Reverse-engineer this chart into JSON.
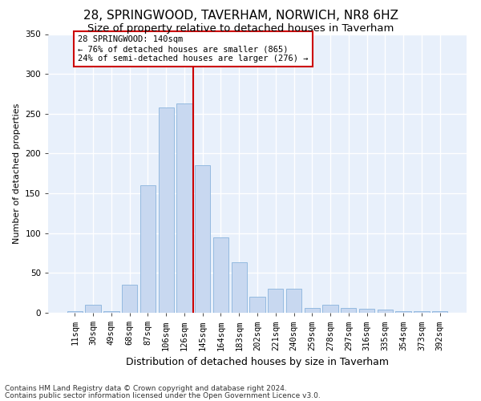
{
  "title1": "28, SPRINGWOOD, TAVERHAM, NORWICH, NR8 6HZ",
  "title2": "Size of property relative to detached houses in Taverham",
  "xlabel": "Distribution of detached houses by size in Taverham",
  "ylabel": "Number of detached properties",
  "categories": [
    "11sqm",
    "30sqm",
    "49sqm",
    "68sqm",
    "87sqm",
    "106sqm",
    "126sqm",
    "145sqm",
    "164sqm",
    "183sqm",
    "202sqm",
    "221sqm",
    "240sqm",
    "259sqm",
    "278sqm",
    "297sqm",
    "316sqm",
    "335sqm",
    "354sqm",
    "373sqm",
    "392sqm"
  ],
  "values": [
    2,
    10,
    2,
    35,
    160,
    258,
    263,
    185,
    95,
    63,
    20,
    30,
    30,
    6,
    10,
    6,
    5,
    4,
    2,
    2,
    2
  ],
  "bar_color": "#c8d8f0",
  "bar_edge_color": "#8ab4dc",
  "marker_line_color": "#cc0000",
  "annotation_line1": "28 SPRINGWOOD: 140sqm",
  "annotation_line2": "← 76% of detached houses are smaller (865)",
  "annotation_line3": "24% of semi-detached houses are larger (276) →",
  "annotation_box_facecolor": "#ffffff",
  "annotation_box_edgecolor": "#cc0000",
  "ylim": [
    0,
    350
  ],
  "yticks": [
    0,
    50,
    100,
    150,
    200,
    250,
    300,
    350
  ],
  "footnote1": "Contains HM Land Registry data © Crown copyright and database right 2024.",
  "footnote2": "Contains public sector information licensed under the Open Government Licence v3.0.",
  "bg_color": "#e8f0fb",
  "grid_color": "#ffffff",
  "title1_fontsize": 11,
  "title2_fontsize": 9.5,
  "xlabel_fontsize": 9,
  "ylabel_fontsize": 8,
  "tick_fontsize": 7.5,
  "footnote_fontsize": 6.5,
  "ann_fontsize": 7.5
}
